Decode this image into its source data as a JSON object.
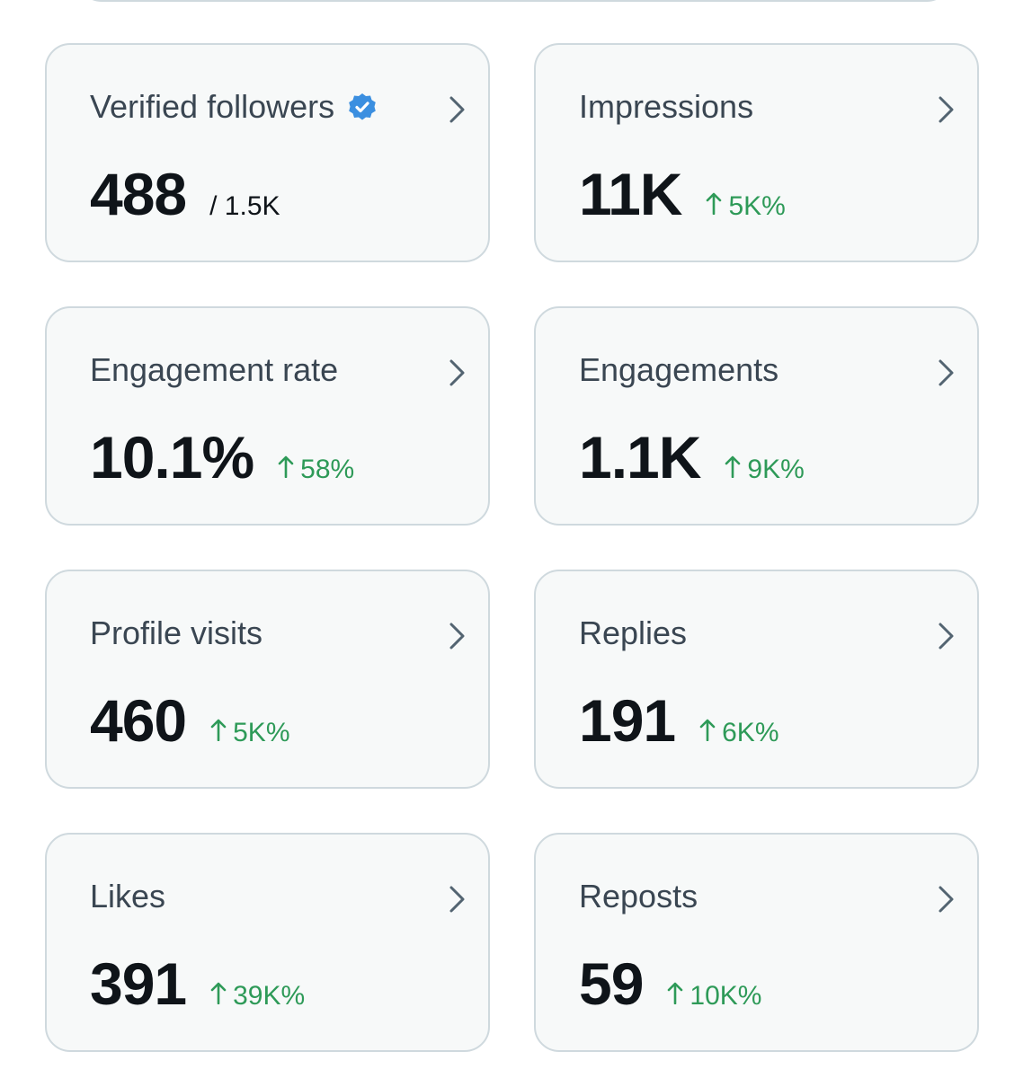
{
  "cards": [
    {
      "title": "Verified followers",
      "verified": true,
      "value": "488",
      "total": "/ 1.5K"
    },
    {
      "title": "Impressions",
      "value": "11K",
      "change": "5K%"
    },
    {
      "title": "Engagement rate",
      "value": "10.1%",
      "change": "58%"
    },
    {
      "title": "Engagements",
      "value": "1.1K",
      "change": "9K%"
    },
    {
      "title": "Profile visits",
      "value": "460",
      "change": "5K%"
    },
    {
      "title": "Replies",
      "value": "191",
      "change": "6K%"
    },
    {
      "title": "Likes",
      "value": "391",
      "change": "39K%"
    },
    {
      "title": "Reposts",
      "value": "59",
      "change": "10K%"
    }
  ]
}
